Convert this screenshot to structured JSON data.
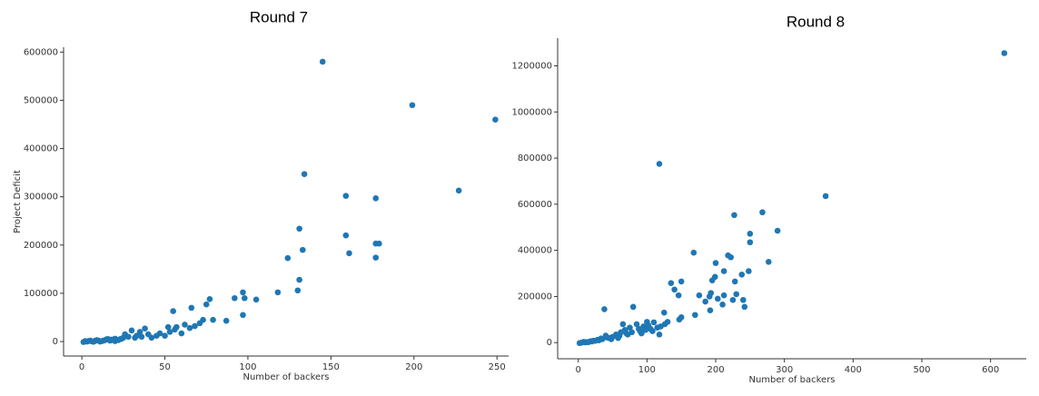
{
  "chart_data": [
    {
      "type": "scatter",
      "title": "Round 7",
      "x_label": "Number of backers",
      "y_label": "Project Deficit",
      "color": "#1f77b4",
      "xlim": [
        -11,
        257
      ],
      "ylim": [
        -30000,
        610000
      ],
      "xticks": [
        0,
        50,
        100,
        150,
        200,
        250
      ],
      "yticks": [
        0,
        100000,
        200000,
        300000,
        400000,
        500000,
        600000
      ],
      "x": [
        145,
        199,
        249,
        134,
        227,
        159,
        177,
        131,
        159,
        161,
        177,
        179,
        177,
        124,
        133,
        131,
        130,
        118,
        97,
        98,
        92,
        105,
        97,
        87,
        77,
        75,
        66,
        55,
        79,
        73,
        71,
        62,
        57,
        52,
        60,
        47,
        38,
        35,
        30,
        26,
        40,
        45,
        50,
        53,
        56,
        65,
        68,
        1,
        2,
        3,
        5,
        6,
        8,
        10,
        12,
        14,
        15,
        17,
        18,
        20,
        22,
        24,
        25,
        28,
        32,
        33,
        36,
        42,
        20,
        16,
        11,
        9,
        4,
        7,
        13,
        19,
        23
      ],
      "y": [
        580000,
        490000,
        460000,
        347000,
        313000,
        302000,
        297000,
        234000,
        220000,
        183000,
        203000,
        203000,
        174000,
        173000,
        190000,
        128000,
        106000,
        102000,
        102000,
        90000,
        90000,
        87000,
        55000,
        43000,
        88000,
        77000,
        70000,
        63000,
        45000,
        45000,
        38000,
        35000,
        30000,
        30000,
        17000,
        17000,
        27000,
        20000,
        23000,
        15000,
        15000,
        12000,
        12000,
        20000,
        25000,
        28000,
        32000,
        -1000,
        1000,
        0,
        2000,
        500,
        1500,
        2000,
        1000,
        3000,
        5000,
        2000,
        4000,
        1000,
        3000,
        6000,
        8000,
        10000,
        8000,
        12000,
        10000,
        8000,
        6000,
        5000,
        0,
        3000,
        1000,
        -500,
        2000,
        3000,
        5000
      ]
    },
    {
      "type": "scatter",
      "title": "Round 8",
      "x_label": "Number of backers",
      "color": "#1f77b4",
      "xlim": [
        -30,
        652
      ],
      "ylim": [
        -70000,
        1320000
      ],
      "xticks": [
        0,
        100,
        200,
        300,
        400,
        500,
        600
      ],
      "yticks": [
        0,
        200000,
        400000,
        600000,
        800000,
        1000000,
        1200000
      ],
      "x": [
        620,
        118,
        360,
        268,
        227,
        250,
        250,
        290,
        168,
        218,
        222,
        200,
        277,
        248,
        212,
        238,
        199,
        195,
        228,
        150,
        135,
        140,
        146,
        176,
        193,
        212,
        230,
        240,
        242,
        225,
        210,
        203,
        191,
        185,
        192,
        170,
        150,
        147,
        130,
        125,
        80,
        38,
        120,
        118,
        110,
        100,
        105,
        95,
        90,
        85,
        75,
        70,
        65,
        60,
        55,
        50,
        45,
        40,
        35,
        30,
        25,
        20,
        15,
        10,
        5,
        2,
        8,
        12,
        18,
        22,
        28,
        33,
        42,
        48,
        58,
        62,
        68,
        72,
        78,
        88,
        92,
        98,
        102,
        108,
        115,
        126
      ],
      "y": [
        1255000,
        775000,
        635000,
        565000,
        553000,
        472000,
        435000,
        485000,
        390000,
        378000,
        370000,
        345000,
        350000,
        310000,
        310000,
        295000,
        285000,
        270000,
        265000,
        265000,
        258000,
        230000,
        205000,
        205000,
        215000,
        205000,
        210000,
        185000,
        155000,
        185000,
        165000,
        190000,
        200000,
        178000,
        140000,
        120000,
        110000,
        100000,
        90000,
        130000,
        155000,
        145000,
        70000,
        35000,
        88000,
        90000,
        60000,
        70000,
        50000,
        80000,
        65000,
        40000,
        80000,
        30000,
        35000,
        25000,
        20000,
        30000,
        15000,
        10000,
        8000,
        5000,
        2000,
        1000,
        0,
        -2000,
        3000,
        2000,
        6000,
        8000,
        12000,
        18000,
        22000,
        15000,
        20000,
        45000,
        55000,
        35000,
        45000,
        60000,
        40000,
        55000,
        75000,
        50000,
        65000,
        80000
      ]
    }
  ]
}
